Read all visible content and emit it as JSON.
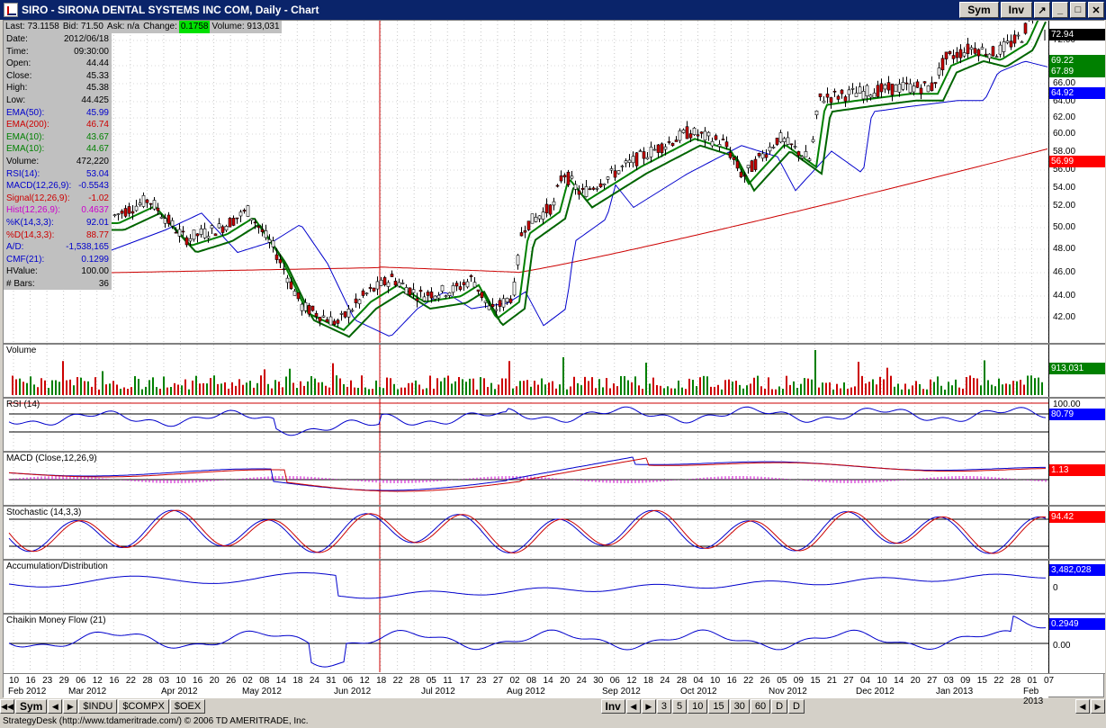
{
  "window": {
    "title": "SIRO - SIRONA DENTAL SYSTEMS INC COM, Daily - Chart",
    "buttons": {
      "sym": "Sym",
      "inv": "Inv"
    }
  },
  "quote": {
    "last": "Last: 73.1158",
    "bid": "Bid: 71.50",
    "ask": "Ask: n/a",
    "change_label": "Change:",
    "change_value": "0.1758",
    "volume": "Volume: 913,031"
  },
  "info": [
    {
      "label": "Date:",
      "value": "2012/06/18",
      "color": "#000000"
    },
    {
      "label": "Time:",
      "value": "09:30:00",
      "color": "#000000"
    },
    {
      "label": "Open:",
      "value": "44.44",
      "color": "#000000"
    },
    {
      "label": "Close:",
      "value": "45.33",
      "color": "#000000"
    },
    {
      "label": "High:",
      "value": "45.38",
      "color": "#000000"
    },
    {
      "label": "Low:",
      "value": "44.425",
      "color": "#000000"
    },
    {
      "label": "EMA(50):",
      "value": "45.99",
      "color": "#0000cc"
    },
    {
      "label": "EMA(200):",
      "value": "46.74",
      "color": "#cc0000"
    },
    {
      "label": "EMA(10):",
      "value": "43.67",
      "color": "#008000"
    },
    {
      "label": "EMA(10):",
      "value": "44.67",
      "color": "#008000"
    },
    {
      "label": "Volume:",
      "value": "472,220",
      "color": "#000000"
    },
    {
      "label": "RSI(14):",
      "value": "53.04",
      "color": "#0000cc"
    },
    {
      "label": "MACD(12,26,9):",
      "value": "-0.5543",
      "color": "#0000cc"
    },
    {
      "label": "Signal(12,26,9):",
      "value": "-1.02",
      "color": "#cc0000"
    },
    {
      "label": "Hist(12,26,9):",
      "value": "0.4637",
      "color": "#cc00cc"
    },
    {
      "label": "%K(14,3,3):",
      "value": "92.01",
      "color": "#0000cc"
    },
    {
      "label": "%D(14,3,3):",
      "value": "88.77",
      "color": "#cc0000"
    },
    {
      "label": "A/D:",
      "value": "-1,538,165",
      "color": "#0000cc"
    },
    {
      "label": "CMF(21):",
      "value": "0.1299",
      "color": "#0000cc"
    },
    {
      "label": "HValue:",
      "value": "100.00",
      "color": "#000000"
    },
    {
      "label": "# Bars:",
      "value": "36",
      "color": "#000000"
    }
  ],
  "price_panel": {
    "yticks": [
      "72.00",
      "70.00",
      "66.00",
      "64.00",
      "62.00",
      "60.00",
      "58.00",
      "56.00",
      "54.00",
      "52.00",
      "50.00",
      "48.00",
      "46.00",
      "44.00",
      "42.00"
    ],
    "tags": [
      {
        "text": "72.94",
        "bg": "#000000"
      },
      {
        "text": "69.22",
        "bg": "#008000"
      },
      {
        "text": "67.89",
        "bg": "#008000"
      },
      {
        "text": "64.92",
        "bg": "#0000ff"
      },
      {
        "text": "56.99",
        "bg": "#ff0000"
      }
    ]
  },
  "volume_panel": {
    "label": "Volume",
    "tag": "913,031"
  },
  "rsi_panel": {
    "label": "RSI (14)",
    "tick_top": "100.00",
    "tag": "80.79"
  },
  "macd_panel": {
    "label": "MACD (Close,12,26,9)",
    "tag": "1.13"
  },
  "stoch_panel": {
    "label": "Stochastic (14,3,3)",
    "tag": "94.42"
  },
  "ad_panel": {
    "label": "Accumulation/Distribution",
    "tag": "3,482,028",
    "tick": "0"
  },
  "cmf_panel": {
    "label": "Chaikin Money Flow (21)",
    "tag": "0.2949",
    "tick": "0.00"
  },
  "xaxis": {
    "days": [
      "10",
      "16",
      "23",
      "29",
      "06",
      "12",
      "16",
      "22",
      "28",
      "03",
      "10",
      "16",
      "20",
      "26",
      "02",
      "08",
      "14",
      "18",
      "24",
      "31",
      "06",
      "12",
      "18",
      "22",
      "28",
      "05",
      "11",
      "17",
      "23",
      "27",
      "02",
      "08",
      "14",
      "20",
      "24",
      "30",
      "06",
      "12",
      "18",
      "24",
      "28",
      "04",
      "10",
      "16",
      "22",
      "26",
      "05",
      "09",
      "15",
      "21",
      "27",
      "04",
      "10",
      "14",
      "20",
      "27",
      "03",
      "09",
      "15",
      "22",
      "28",
      "01",
      "07"
    ],
    "months": [
      {
        "label": "Feb 2012"
      },
      {
        "label": "Mar 2012"
      },
      {
        "label": "Apr 2012"
      },
      {
        "label": "May 2012"
      },
      {
        "label": "Jun 2012"
      },
      {
        "label": "Jul 2012"
      },
      {
        "label": "Aug 2012"
      },
      {
        "label": "Sep 2012"
      },
      {
        "label": "Oct 2012"
      },
      {
        "label": "Nov 2012"
      },
      {
        "label": "Dec 2012"
      },
      {
        "label": "Jan 2013"
      },
      {
        "label": "Feb 2013"
      }
    ]
  },
  "bottom_tabs": {
    "left": [
      "Sym"
    ],
    "symbols": [
      "$INDU",
      "$COMPX",
      "$OEX"
    ],
    "inv": "Inv",
    "periods": [
      "3",
      "5",
      "10",
      "15",
      "30",
      "60",
      "D",
      "D"
    ]
  },
  "status": "StrategyDesk (http://www.tdameritrade.com/) © 2006 TD AMERITRADE, Inc."
}
